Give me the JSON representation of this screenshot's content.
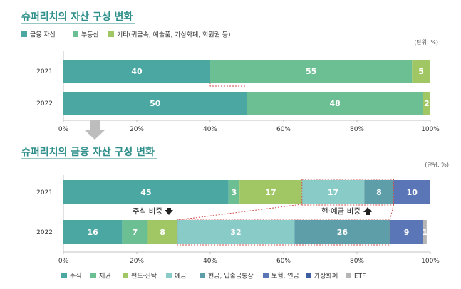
{
  "colors": {
    "title": "#2f8f8b",
    "frame": "#c0c0c0",
    "dashed": "#d24a4a",
    "chart1": [
      "#4aa7a1",
      "#6cbf93",
      "#a0c764"
    ],
    "chart2": [
      "#4aa7a1",
      "#6cbf93",
      "#a0c764",
      "#88cbc7",
      "#5d9ea9",
      "#5a76b7",
      "#3e5f9f",
      "#b5b5b5"
    ]
  },
  "chart_data": [
    {
      "type": "bar",
      "orientation": "horizontal-stacked",
      "title": "슈퍼리치의 자산 구성 변화",
      "unit": "(단위: %)",
      "categories": [
        "2021",
        "2022"
      ],
      "series": [
        {
          "name": "금융 자산",
          "values": [
            40,
            50
          ]
        },
        {
          "name": "부동산",
          "values": [
            55,
            48
          ]
        },
        {
          "name": "기타(귀금속, 예술품, 가상화폐, 회원권 등)",
          "values": [
            5,
            2
          ]
        }
      ],
      "xticks": [
        "0%",
        "20%",
        "40%",
        "60%",
        "80%",
        "100%"
      ],
      "xlim": [
        0,
        100
      ],
      "legend": "top"
    },
    {
      "type": "bar",
      "orientation": "horizontal-stacked",
      "title": "슈퍼리치의 금융 자산 구성 변화",
      "unit": "(단위: %)",
      "categories": [
        "2021",
        "2022"
      ],
      "series": [
        {
          "name": "주식",
          "values": [
            45,
            16
          ]
        },
        {
          "name": "채권",
          "values": [
            3,
            7
          ]
        },
        {
          "name": "펀드·신탁",
          "values": [
            17,
            8
          ]
        },
        {
          "name": "예금",
          "values": [
            17,
            32
          ]
        },
        {
          "name": "현금, 입출금통장",
          "values": [
            8,
            26
          ]
        },
        {
          "name": "보험, 연금",
          "values": [
            10,
            9
          ]
        },
        {
          "name": "가상화폐",
          "values": [
            null,
            null
          ]
        },
        {
          "name": "ETF",
          "values": [
            null,
            1
          ]
        }
      ],
      "xticks": [
        "0%",
        "20%",
        "40%",
        "60%",
        "80%",
        "100%"
      ],
      "xlim": [
        0,
        100
      ],
      "legend": "bottom",
      "annotations": [
        "주식 비중",
        "현·예금 비중"
      ]
    }
  ]
}
